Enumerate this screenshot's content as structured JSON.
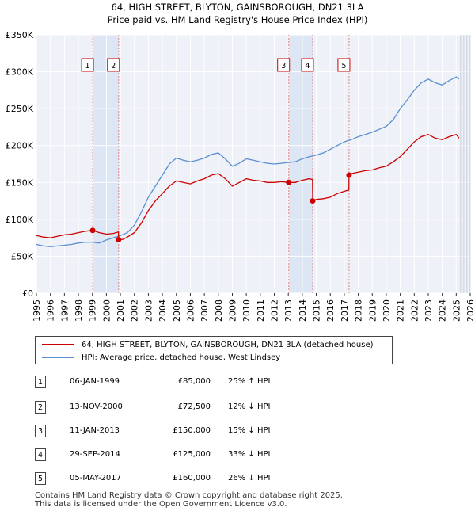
{
  "chart_data": {
    "type": "line",
    "title": "64, HIGH STREET, BLYTON, GAINSBOROUGH, DN21 3LA",
    "subtitle": "Price paid vs. HM Land Registry's House Price Index (HPI)",
    "xlim": [
      1995,
      2026
    ],
    "ylim": [
      0,
      350000
    ],
    "x_ticks": [
      "1995",
      "1996",
      "1997",
      "1998",
      "1999",
      "2000",
      "2001",
      "2002",
      "2003",
      "2004",
      "2005",
      "2006",
      "2007",
      "2008",
      "2009",
      "2010",
      "2011",
      "2012",
      "2013",
      "2014",
      "2015",
      "2016",
      "2017",
      "2018",
      "2019",
      "2020",
      "2021",
      "2022",
      "2023",
      "2024",
      "2025",
      "2026"
    ],
    "y_ticks": [
      {
        "value": 0,
        "label": "£0"
      },
      {
        "value": 50000,
        "label": "£50K"
      },
      {
        "value": 100000,
        "label": "£100K"
      },
      {
        "value": 150000,
        "label": "£150K"
      },
      {
        "value": 200000,
        "label": "£200K"
      },
      {
        "value": 250000,
        "label": "£250K"
      },
      {
        "value": 300000,
        "label": "£300K"
      },
      {
        "value": 350000,
        "label": "£350K"
      }
    ],
    "grid": true,
    "forecast_start": 2025.2,
    "colors": {
      "property": "#cc0000",
      "hpi": "#5b8fd0",
      "band": "#dde6f4",
      "grid": "#ffffff",
      "vline": "#e08888"
    },
    "series": [
      {
        "name": "64, HIGH STREET, BLYTON, GAINSBOROUGH, DN21 3LA (detached house)",
        "color": "#cc0000",
        "points": [
          [
            1995.0,
            78000
          ],
          [
            1995.5,
            76000
          ],
          [
            1996.0,
            75000
          ],
          [
            1996.5,
            77000
          ],
          [
            1997.0,
            79000
          ],
          [
            1997.5,
            80000
          ],
          [
            1998.0,
            82000
          ],
          [
            1998.5,
            84000
          ],
          [
            1999.02,
            85000
          ],
          [
            1999.5,
            82000
          ],
          [
            2000.0,
            80000
          ],
          [
            2000.5,
            81000
          ],
          [
            2000.86,
            83000
          ],
          [
            2000.87,
            72500
          ],
          [
            2001.2,
            73000
          ],
          [
            2001.5,
            76000
          ],
          [
            2002.0,
            82000
          ],
          [
            2002.5,
            95000
          ],
          [
            2003.0,
            112000
          ],
          [
            2003.5,
            125000
          ],
          [
            2004.0,
            135000
          ],
          [
            2004.5,
            145000
          ],
          [
            2005.0,
            152000
          ],
          [
            2005.5,
            150000
          ],
          [
            2006.0,
            148000
          ],
          [
            2006.5,
            152000
          ],
          [
            2007.0,
            155000
          ],
          [
            2007.5,
            160000
          ],
          [
            2008.0,
            162000
          ],
          [
            2008.5,
            155000
          ],
          [
            2009.0,
            145000
          ],
          [
            2009.5,
            150000
          ],
          [
            2010.0,
            155000
          ],
          [
            2010.5,
            153000
          ],
          [
            2011.0,
            152000
          ],
          [
            2011.5,
            150000
          ],
          [
            2012.0,
            150000
          ],
          [
            2012.5,
            151000
          ],
          [
            2013.03,
            150000
          ],
          [
            2013.5,
            150000
          ],
          [
            2014.0,
            153000
          ],
          [
            2014.5,
            155000
          ],
          [
            2014.73,
            154000
          ],
          [
            2014.74,
            125000
          ],
          [
            2015.0,
            127000
          ],
          [
            2015.5,
            128000
          ],
          [
            2016.0,
            130000
          ],
          [
            2016.5,
            135000
          ],
          [
            2017.33,
            140000
          ],
          [
            2017.34,
            160000
          ],
          [
            2017.5,
            162000
          ],
          [
            2018.0,
            164000
          ],
          [
            2018.5,
            166000
          ],
          [
            2019.0,
            167000
          ],
          [
            2019.5,
            170000
          ],
          [
            2020.0,
            172000
          ],
          [
            2020.5,
            178000
          ],
          [
            2021.0,
            185000
          ],
          [
            2021.5,
            195000
          ],
          [
            2022.0,
            205000
          ],
          [
            2022.5,
            212000
          ],
          [
            2023.0,
            215000
          ],
          [
            2023.5,
            210000
          ],
          [
            2024.0,
            208000
          ],
          [
            2024.5,
            212000
          ],
          [
            2025.0,
            215000
          ],
          [
            2025.2,
            210000
          ]
        ]
      },
      {
        "name": "HPI: Average price, detached house, West Lindsey",
        "color": "#5b8fd0",
        "points": [
          [
            1995.0,
            66000
          ],
          [
            1995.5,
            64000
          ],
          [
            1996.0,
            63000
          ],
          [
            1996.5,
            64000
          ],
          [
            1997.0,
            65000
          ],
          [
            1997.5,
            66000
          ],
          [
            1998.0,
            68000
          ],
          [
            1998.5,
            69000
          ],
          [
            1999.0,
            69000
          ],
          [
            1999.5,
            68000
          ],
          [
            2000.0,
            72000
          ],
          [
            2000.5,
            75000
          ],
          [
            2001.0,
            78000
          ],
          [
            2001.5,
            82000
          ],
          [
            2002.0,
            92000
          ],
          [
            2002.5,
            110000
          ],
          [
            2003.0,
            130000
          ],
          [
            2003.5,
            145000
          ],
          [
            2004.0,
            160000
          ],
          [
            2004.5,
            175000
          ],
          [
            2005.0,
            183000
          ],
          [
            2005.5,
            180000
          ],
          [
            2006.0,
            178000
          ],
          [
            2006.5,
            180000
          ],
          [
            2007.0,
            183000
          ],
          [
            2007.5,
            188000
          ],
          [
            2008.0,
            190000
          ],
          [
            2008.5,
            182000
          ],
          [
            2009.0,
            172000
          ],
          [
            2009.5,
            176000
          ],
          [
            2010.0,
            182000
          ],
          [
            2010.5,
            180000
          ],
          [
            2011.0,
            178000
          ],
          [
            2011.5,
            176000
          ],
          [
            2012.0,
            175000
          ],
          [
            2012.5,
            176000
          ],
          [
            2013.0,
            177000
          ],
          [
            2013.5,
            178000
          ],
          [
            2014.0,
            182000
          ],
          [
            2014.5,
            185000
          ],
          [
            2015.0,
            187000
          ],
          [
            2015.5,
            190000
          ],
          [
            2016.0,
            195000
          ],
          [
            2016.5,
            200000
          ],
          [
            2017.0,
            205000
          ],
          [
            2017.5,
            208000
          ],
          [
            2018.0,
            212000
          ],
          [
            2018.5,
            215000
          ],
          [
            2019.0,
            218000
          ],
          [
            2019.5,
            222000
          ],
          [
            2020.0,
            226000
          ],
          [
            2020.5,
            235000
          ],
          [
            2021.0,
            250000
          ],
          [
            2021.5,
            262000
          ],
          [
            2022.0,
            275000
          ],
          [
            2022.5,
            285000
          ],
          [
            2023.0,
            290000
          ],
          [
            2023.5,
            285000
          ],
          [
            2024.0,
            282000
          ],
          [
            2024.5,
            288000
          ],
          [
            2025.0,
            293000
          ],
          [
            2025.2,
            290000
          ]
        ]
      }
    ],
    "sales": [
      {
        "label": "1",
        "x": 1999.02,
        "price": 85000
      },
      {
        "label": "2",
        "x": 2000.87,
        "price": 72500
      },
      {
        "label": "3",
        "x": 2013.03,
        "price": 150000
      },
      {
        "label": "4",
        "x": 2014.74,
        "price": 125000
      },
      {
        "label": "5",
        "x": 2017.34,
        "price": 160000
      }
    ]
  },
  "legend": {
    "property_label": "64, HIGH STREET, BLYTON, GAINSBOROUGH, DN21 3LA (detached house)",
    "hpi_label": "HPI: Average price, detached house, West Lindsey"
  },
  "sales_table": [
    {
      "num": "1",
      "date": "06-JAN-1999",
      "price": "£85,000",
      "hpi": "25% ↑ HPI"
    },
    {
      "num": "2",
      "date": "13-NOV-2000",
      "price": "£72,500",
      "hpi": "12% ↓ HPI"
    },
    {
      "num": "3",
      "date": "11-JAN-2013",
      "price": "£150,000",
      "hpi": "15% ↓ HPI"
    },
    {
      "num": "4",
      "date": "29-SEP-2014",
      "price": "£125,000",
      "hpi": "33% ↓ HPI"
    },
    {
      "num": "5",
      "date": "05-MAY-2017",
      "price": "£160,000",
      "hpi": "26% ↓ HPI"
    }
  ],
  "footer": {
    "line1": "Contains HM Land Registry data © Crown copyright and database right 2025.",
    "line2": "This data is licensed under the Open Government Licence v3.0."
  }
}
